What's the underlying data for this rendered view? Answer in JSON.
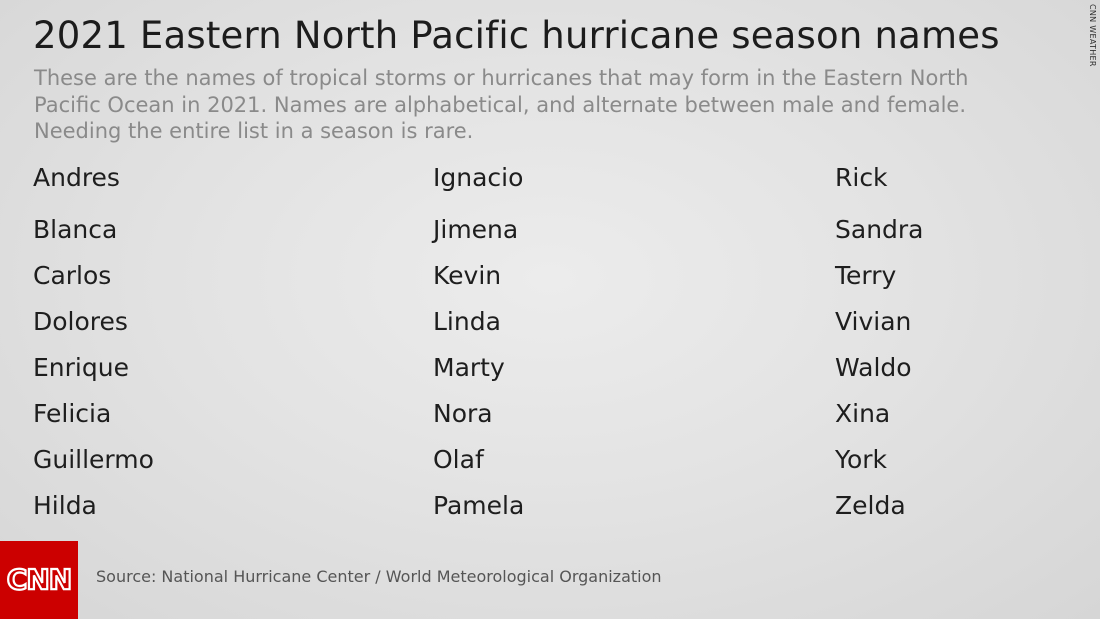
{
  "header": {
    "title": "2021 Eastern North Pacific hurricane season names",
    "subtitle": "These are the names of tropical storms or hurricanes that may form in the Eastern North Pacific Ocean in 2021. Names are alphabetical, and alternate between male and female. Needing the entire list in a season is rare."
  },
  "names": {
    "column_1": [
      "Andres",
      "Blanca",
      "Carlos",
      "Dolores",
      "Enrique",
      "Felicia",
      "Guillermo",
      "Hilda"
    ],
    "column_2": [
      "Ignacio",
      "Jimena",
      "Kevin",
      "Linda",
      "Marty",
      "Nora",
      "Olaf",
      "Pamela"
    ],
    "column_3": [
      "Rick",
      "Sandra",
      "Terry",
      "Vivian",
      "Waldo",
      "Xina",
      "York",
      "Zelda"
    ]
  },
  "footer": {
    "logo_text": "CNN",
    "source": "Source: National Hurricane Center / World Meteorological Organization"
  },
  "watermark": "CNN WEATHER",
  "colors": {
    "brand_red": "#cc0000",
    "title": "#1c1c1c",
    "subtitle": "#8a8a8a"
  }
}
